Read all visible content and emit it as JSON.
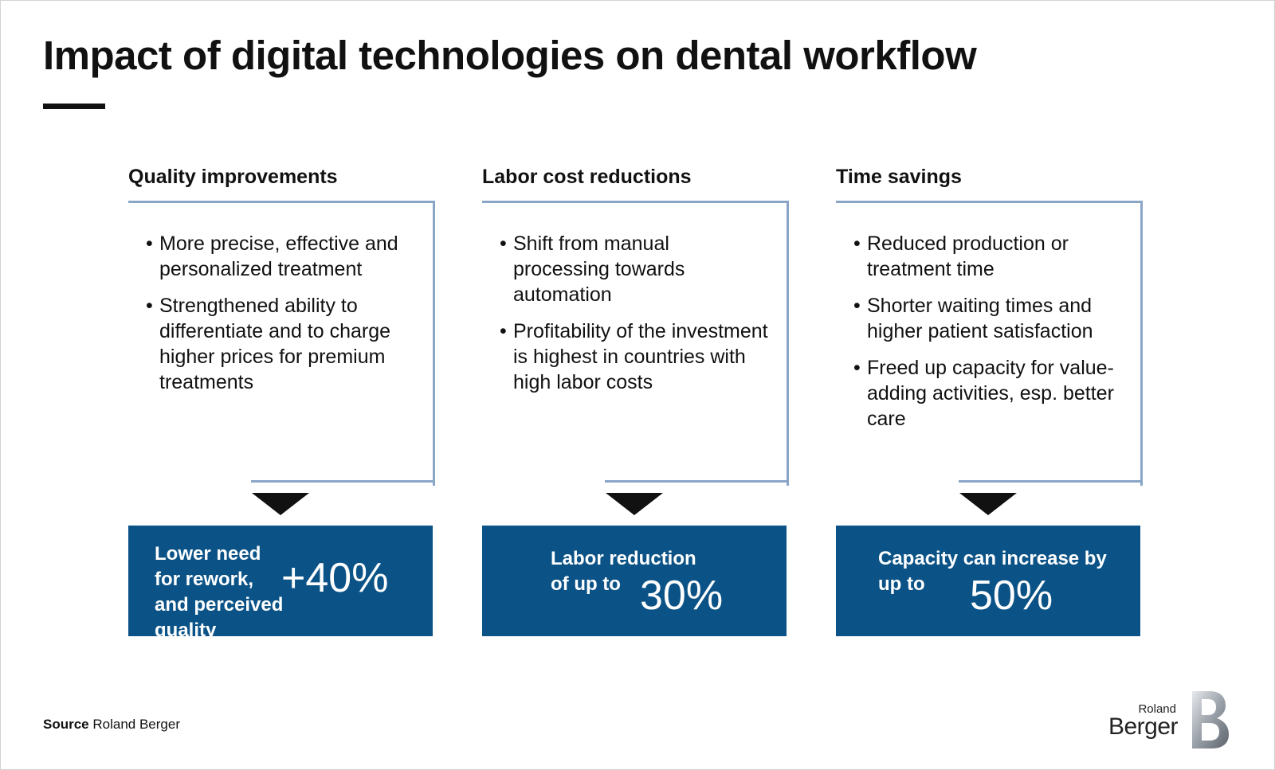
{
  "title": "Impact of digital technologies on dental workflow",
  "columns": [
    {
      "heading": "Quality improvements",
      "bullets": [
        "More precise, effective and personalized treatment",
        "Strengthened ability to differentiate and to charge higher prices for premium treatments"
      ],
      "outcome_text": "Lower need for rework, and perceived quality",
      "outcome_value": "+40%"
    },
    {
      "heading": "Labor cost reductions",
      "bullets": [
        "Shift from manual processing towards automation",
        "Profitability of the investment is highest in countries with high labor costs"
      ],
      "outcome_text": "Labor reduction of up to",
      "outcome_value": "30%"
    },
    {
      "heading": "Time savings",
      "bullets": [
        "Reduced production or treatment time",
        "Shorter waiting times and higher patient satisfaction",
        "Freed up capacity for value-adding activities, esp. better care"
      ],
      "outcome_text": "Capacity can increase by up to",
      "outcome_value": "50%"
    }
  ],
  "source": {
    "label": "Source",
    "text": "Roland Berger"
  },
  "logo": {
    "line1": "Roland",
    "line2": "Berger"
  },
  "colors": {
    "outcome_box": "#0b5387",
    "bracket": "#8aa6c7",
    "text": "#111111"
  }
}
